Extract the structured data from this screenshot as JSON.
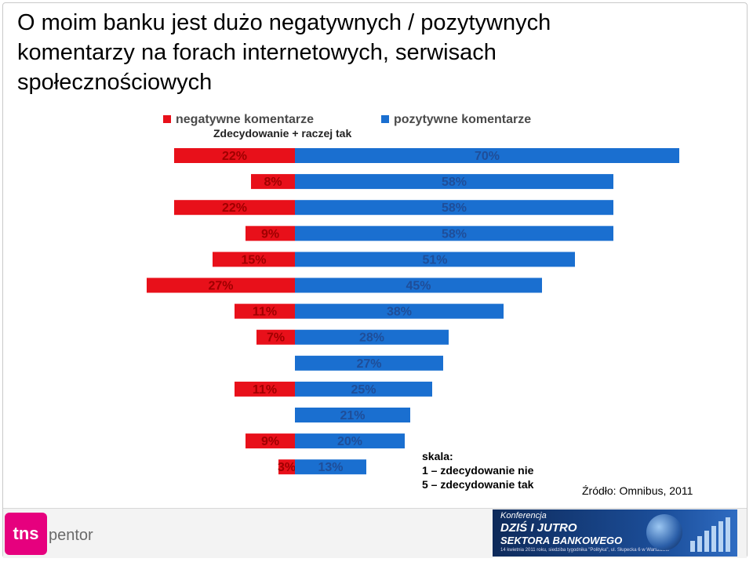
{
  "title": "O moim banku jest dużo negatywnych / pozytywnych\nkomentarzy na forach internetowych, serwisach\nspołecznościowych",
  "legend": {
    "negative": "negatywne komentarze",
    "positive": "pozytywne komentarze"
  },
  "subtitle": "Zdecydowanie + raczej tak",
  "scale": {
    "line1": "skala:",
    "line2": "1 – zdecydowanie nie",
    "line3": "5 – zdecydowanie tak"
  },
  "source": "Źródło: Omnibus, 2011",
  "footer": {
    "logo": "tns",
    "logo_text": "pentor",
    "banner_line1": "Konferencja",
    "banner_line2": "DZIŚ I JUTRO",
    "banner_line3": "SEKTORA BANKOWEGO",
    "banner_line4": "14 kwietnia 2011 roku, siedziba tygodnika \"Polityka\", ul. Słupecka 6 w Warszawie"
  },
  "colors": {
    "negative": "#e8101a",
    "positive": "#1a6fd0"
  },
  "chart_data": {
    "type": "bar",
    "orientation": "horizontal-diverging",
    "unit": "%",
    "series": [
      {
        "name": "negatywne komentarze",
        "values": [
          22,
          8,
          22,
          9,
          15,
          27,
          11,
          7,
          null,
          11,
          null,
          9,
          3
        ]
      },
      {
        "name": "pozytywne komentarze",
        "values": [
          70,
          58,
          58,
          58,
          51,
          45,
          38,
          28,
          27,
          25,
          21,
          20,
          13
        ]
      }
    ],
    "grid": false,
    "legend": "top"
  }
}
